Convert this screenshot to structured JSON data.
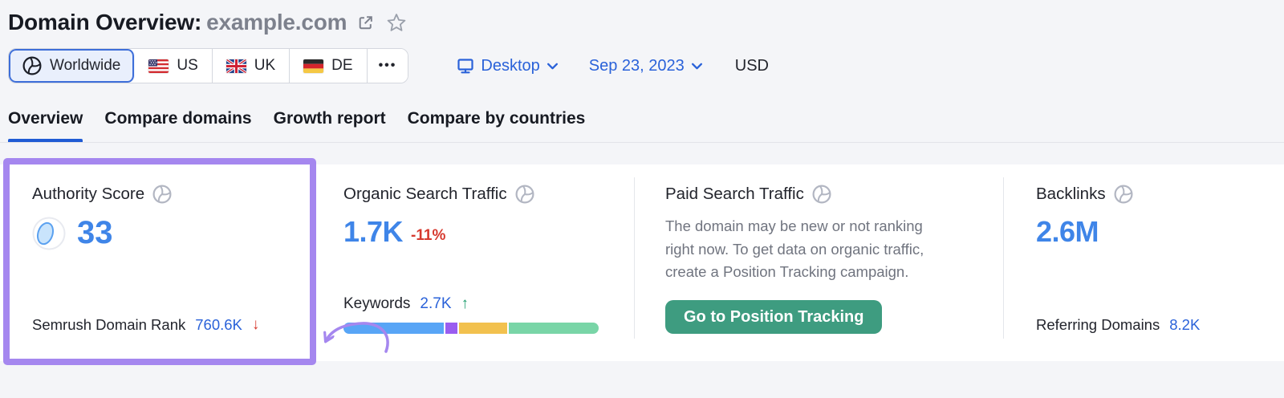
{
  "header": {
    "title": "Domain Overview:",
    "domain": "example.com"
  },
  "filters": {
    "regions": [
      {
        "id": "worldwide",
        "label": "Worldwide",
        "active": true
      },
      {
        "id": "us",
        "label": "US",
        "active": false
      },
      {
        "id": "uk",
        "label": "UK",
        "active": false
      },
      {
        "id": "de",
        "label": "DE",
        "active": false
      },
      {
        "id": "more",
        "label": "•••",
        "active": false
      }
    ],
    "device": {
      "label": "Desktop"
    },
    "date": {
      "label": "Sep 23, 2023"
    },
    "currency": "USD"
  },
  "tabs": [
    {
      "label": "Overview",
      "active": true
    },
    {
      "label": "Compare domains",
      "active": false
    },
    {
      "label": "Growth report",
      "active": false
    },
    {
      "label": "Compare by countries",
      "active": false
    }
  ],
  "cards": {
    "authority_score": {
      "title": "Authority Score",
      "score": "33",
      "bottom_label": "Semrush Domain Rank",
      "bottom_value": "760.6K",
      "trend_icon": "↓"
    },
    "organic_search": {
      "title": "Organic Search Traffic",
      "value": "1.7K",
      "change": "-11%",
      "keywords_label": "Keywords",
      "keywords_value": "2.7K",
      "keywords_trend_icon": "↑",
      "bar_segments": [
        {
          "name": "blue",
          "color": "#58a5f6",
          "percent": 40
        },
        {
          "name": "purple",
          "color": "#9a5df0",
          "percent": 5
        },
        {
          "name": "yellow",
          "color": "#f2c14e",
          "percent": 19
        },
        {
          "name": "green",
          "color": "#79d5a7",
          "percent": 36
        }
      ]
    },
    "paid_search": {
      "title": "Paid Search Traffic",
      "message": "The domain may be new or not ranking right now. To get data on organic traffic, create a Position Tracking campaign.",
      "button_label": "Go to Position Tracking"
    },
    "backlinks": {
      "title": "Backlinks",
      "value": "2.6M",
      "bottom_label": "Referring Domains",
      "bottom_value": "8.2K"
    }
  },
  "colors": {
    "accent_blue": "#3f85e8",
    "link_blue": "#2a62d9",
    "negative_red": "#d6392e",
    "positive_green": "#1f9e6e",
    "button_green": "#3e9c80",
    "highlight_purple": "#a587ef",
    "tab_underline": "#1f5bd4"
  }
}
